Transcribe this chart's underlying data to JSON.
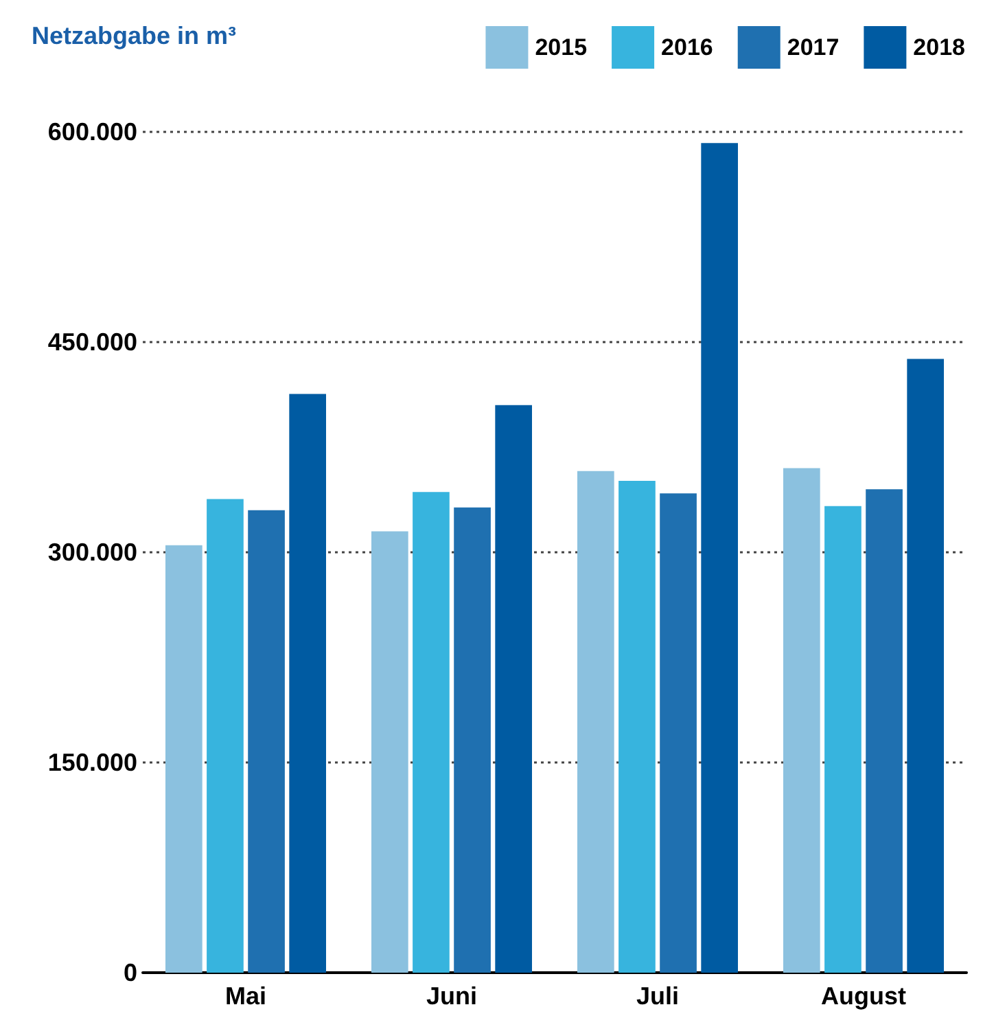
{
  "chart_data": {
    "type": "bar",
    "title": "Netzabgabe in m³",
    "categories": [
      "Mai",
      "Juni",
      "Juli",
      "August"
    ],
    "series": [
      {
        "name": "2015",
        "color": "#8bc1df",
        "values": [
          305000,
          315000,
          358000,
          360000
        ]
      },
      {
        "name": "2016",
        "color": "#37b4de",
        "values": [
          338000,
          343000,
          351000,
          333000
        ]
      },
      {
        "name": "2017",
        "color": "#1f70b0",
        "values": [
          330000,
          332000,
          342000,
          345000
        ]
      },
      {
        "name": "2018",
        "color": "#005ba2",
        "values": [
          413000,
          405000,
          592000,
          438000
        ]
      }
    ],
    "ylim": [
      0,
      600000
    ],
    "yticks": [
      {
        "value": 0,
        "label": "0"
      },
      {
        "value": 150000,
        "label": "150.000"
      },
      {
        "value": 300000,
        "label": "300.000"
      },
      {
        "value": 450000,
        "label": "450.000"
      },
      {
        "value": 600000,
        "label": "600.000"
      }
    ],
    "grid": "y",
    "legend": "top right"
  }
}
